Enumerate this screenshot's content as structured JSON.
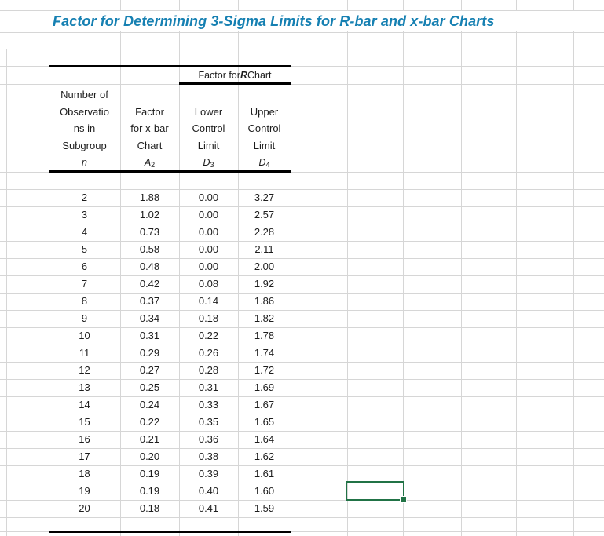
{
  "title": "Factor for Determining 3-Sigma Limits for R-bar and x-bar Charts",
  "colors": {
    "title_text": "#1680B2",
    "selection_green": "#217346",
    "gridline": "#D6D6D6"
  },
  "table": {
    "r_chart_header": {
      "prefix": "Factor for ",
      "r": "R",
      "suffix": " Chart"
    },
    "col_headers": {
      "n": {
        "lines": [
          "Number of",
          "Observatio",
          "ns in",
          "Subgroup"
        ],
        "symbol": "n",
        "subscript": ""
      },
      "a2": {
        "lines": [
          "Factor",
          "for x-bar",
          "Chart"
        ],
        "symbol": "A",
        "subscript": "2"
      },
      "d3": {
        "lines": [
          "Lower",
          "Control",
          "Limit"
        ],
        "symbol": "D",
        "subscript": "3"
      },
      "d4": {
        "lines": [
          "Upper",
          "Control",
          "Limit"
        ],
        "symbol": "D",
        "subscript": "4"
      }
    },
    "rows": [
      [
        "2",
        "1.88",
        "0.00",
        "3.27"
      ],
      [
        "3",
        "1.02",
        "0.00",
        "2.57"
      ],
      [
        "4",
        "0.73",
        "0.00",
        "2.28"
      ],
      [
        "5",
        "0.58",
        "0.00",
        "2.11"
      ],
      [
        "6",
        "0.48",
        "0.00",
        "2.00"
      ],
      [
        "7",
        "0.42",
        "0.08",
        "1.92"
      ],
      [
        "8",
        "0.37",
        "0.14",
        "1.86"
      ],
      [
        "9",
        "0.34",
        "0.18",
        "1.82"
      ],
      [
        "10",
        "0.31",
        "0.22",
        "1.78"
      ],
      [
        "11",
        "0.29",
        "0.26",
        "1.74"
      ],
      [
        "12",
        "0.27",
        "0.28",
        "1.72"
      ],
      [
        "13",
        "0.25",
        "0.31",
        "1.69"
      ],
      [
        "14",
        "0.24",
        "0.33",
        "1.67"
      ],
      [
        "15",
        "0.22",
        "0.35",
        "1.65"
      ],
      [
        "16",
        "0.21",
        "0.36",
        "1.64"
      ],
      [
        "17",
        "0.20",
        "0.38",
        "1.62"
      ],
      [
        "18",
        "0.19",
        "0.39",
        "1.61"
      ],
      [
        "19",
        "0.19",
        "0.40",
        "1.60"
      ],
      [
        "20",
        "0.18",
        "0.41",
        "1.59"
      ]
    ]
  }
}
